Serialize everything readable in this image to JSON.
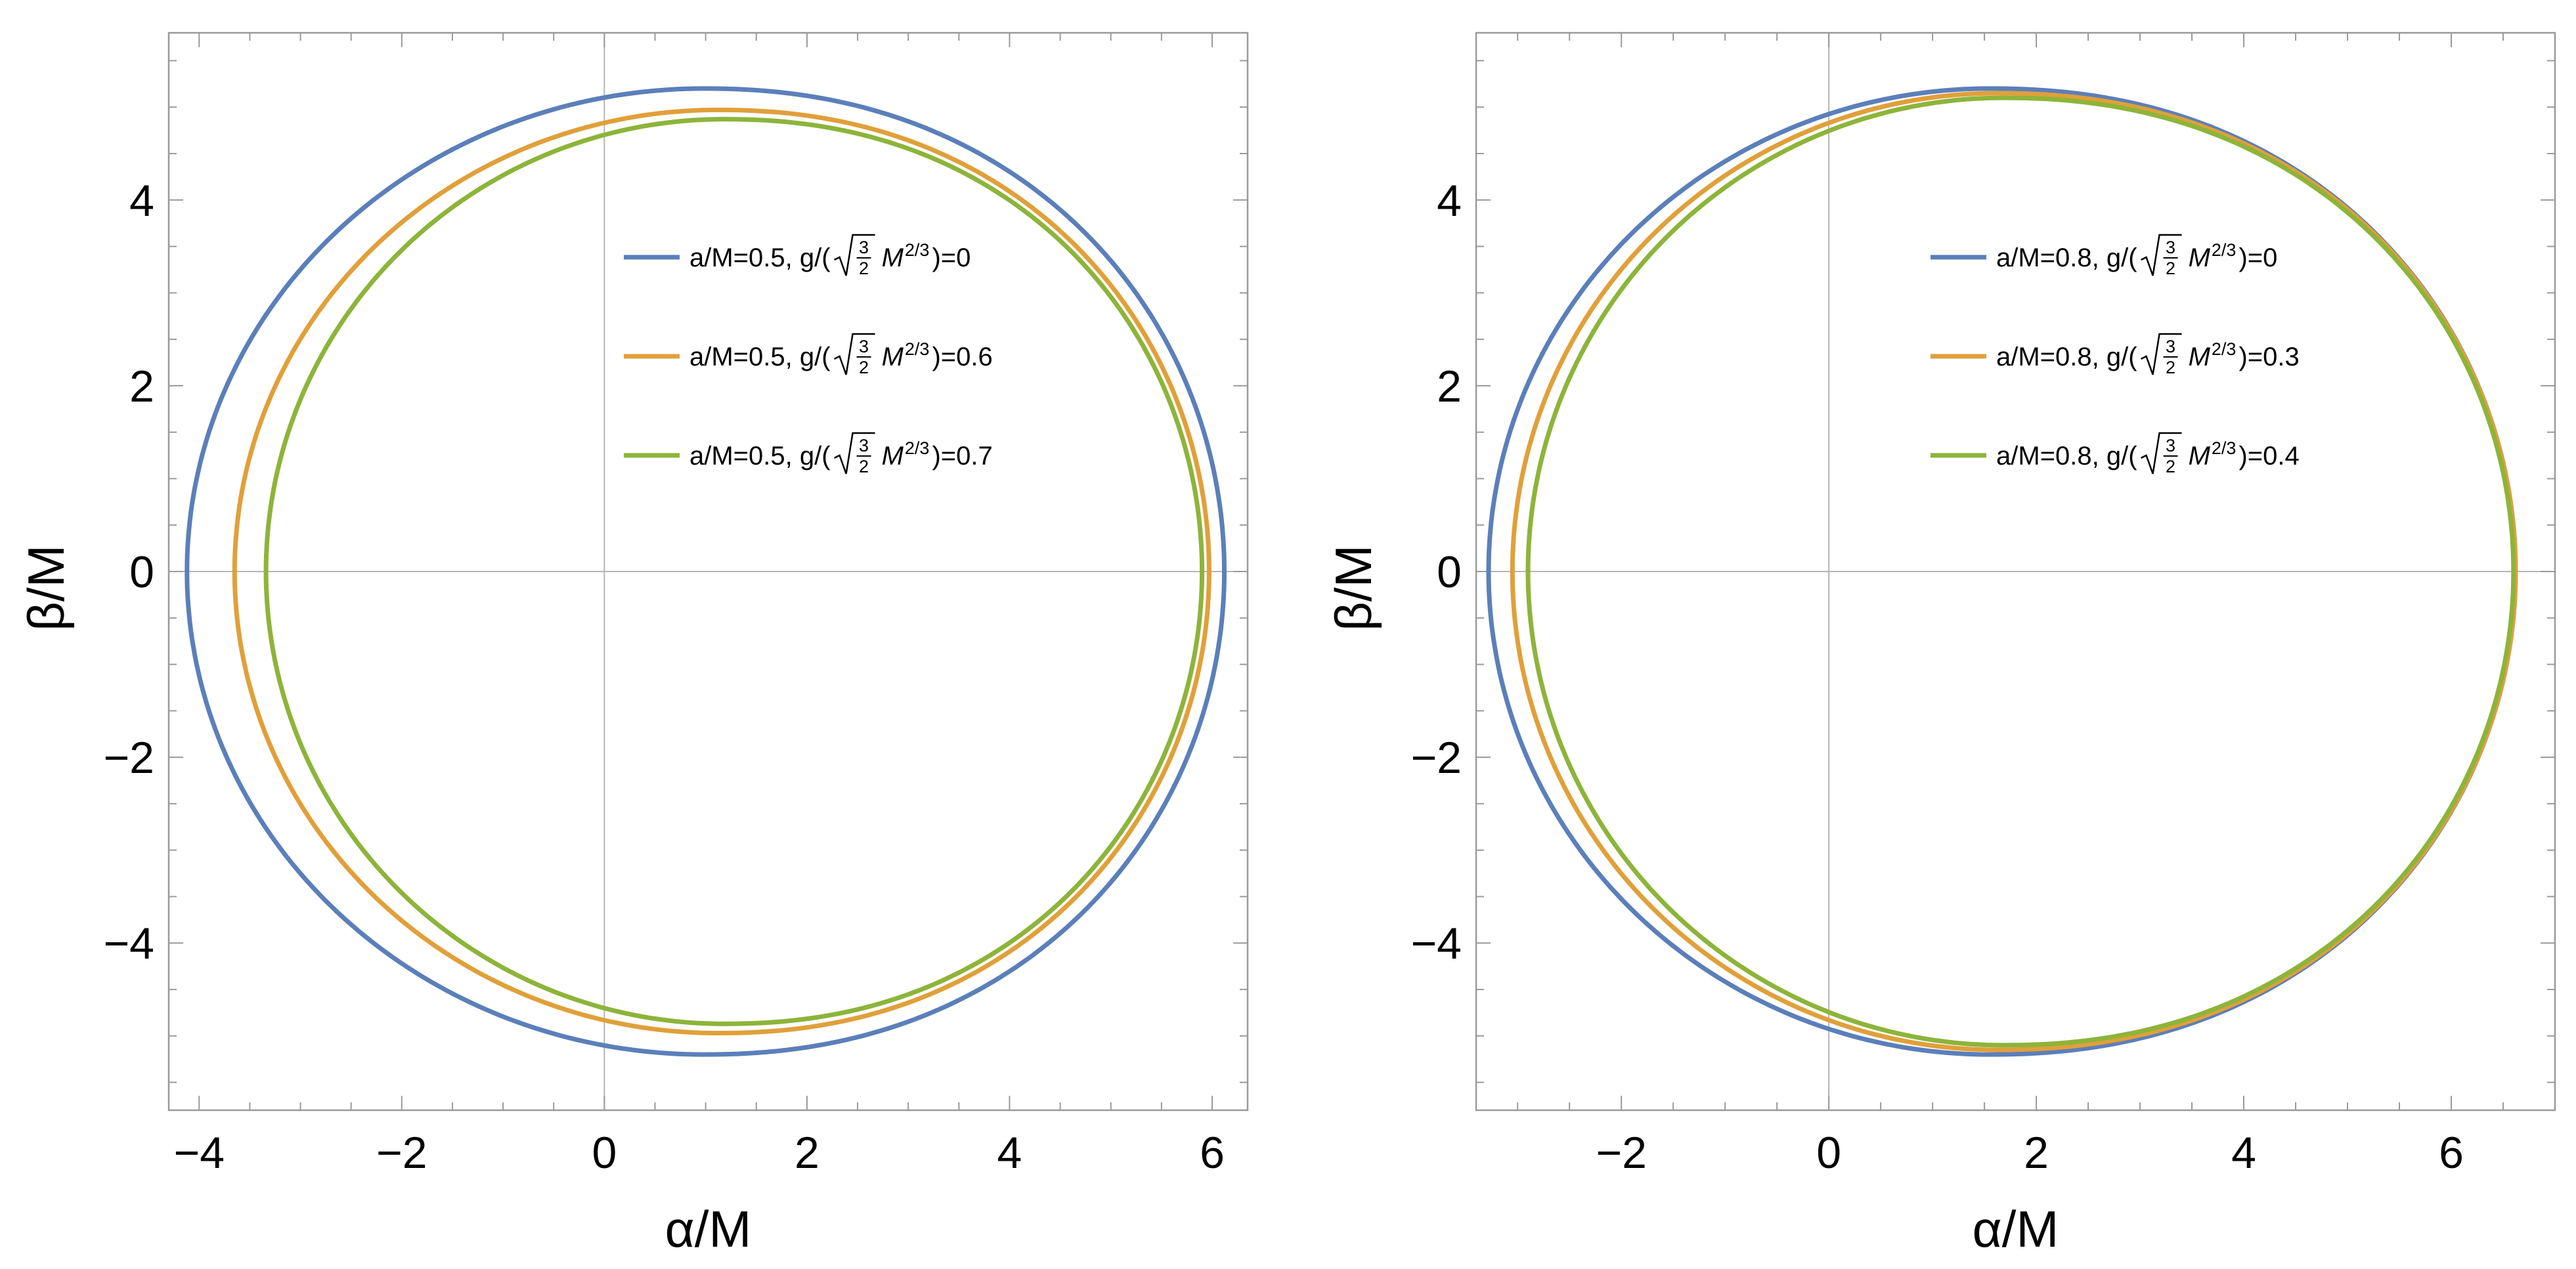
{
  "colors": {
    "blue": "#5B7FBA",
    "orange": "#E0A03A",
    "green": "#8DB43A",
    "frame": "#9a9a9a",
    "zero_line": "#b5b5b5"
  },
  "chart_data": [
    {
      "type": "line",
      "title": "",
      "xlabel": "α/M",
      "ylabel": "β/M",
      "xlim": [
        -4.3,
        6.35
      ],
      "ylim": [
        -5.8,
        5.8
      ],
      "xticks": [
        -4,
        -2,
        0,
        2,
        4,
        6
      ],
      "yticks": [
        -4,
        -2,
        0,
        2,
        4
      ],
      "xtick_labels": [
        "−4",
        "−2",
        "0",
        "2",
        "4",
        "6"
      ],
      "ytick_labels": [
        "−4",
        "−2",
        "0",
        "2",
        "4"
      ],
      "grid": false,
      "legend": "upper-right-inside",
      "series": [
        {
          "label_pre": "a/M=0.5, g/(",
          "label_post": ")=0",
          "color": "blue",
          "x_range": [
            -4.12,
            6.12
          ],
          "y_half": 5.2,
          "x_at_y_max": 0.98
        },
        {
          "label_pre": "a/M=0.5, g/(",
          "label_post": ")=0.6",
          "color": "orange",
          "x_range": [
            -3.65,
            5.97
          ],
          "y_half": 4.97,
          "x_at_y_max": 1.12
        },
        {
          "label_pre": "a/M=0.5, g/(",
          "label_post": ")=0.7",
          "color": "green",
          "x_range": [
            -3.34,
            5.9
          ],
          "y_half": 4.87,
          "x_at_y_max": 1.18
        }
      ]
    },
    {
      "type": "line",
      "title": "",
      "xlabel": "α/M",
      "ylabel": "β/M",
      "xlim": [
        -3.4,
        7.0
      ],
      "ylim": [
        -5.8,
        5.8
      ],
      "xticks": [
        -2,
        0,
        2,
        4,
        6
      ],
      "yticks": [
        -4,
        -2,
        0,
        2,
        4
      ],
      "xtick_labels": [
        "−2",
        "0",
        "2",
        "4",
        "6"
      ],
      "ytick_labels": [
        "−4",
        "−2",
        "0",
        "2",
        "4"
      ],
      "grid": false,
      "legend": "upper-right-inside",
      "series": [
        {
          "label_pre": "a/M=0.8, g/(",
          "label_post": ")=0",
          "color": "blue",
          "x_range": [
            -3.28,
            6.62
          ],
          "y_half": 5.2,
          "x_at_y_max": 1.55
        },
        {
          "label_pre": "a/M=0.8, g/(",
          "label_post": ")=0.3",
          "color": "orange",
          "x_range": [
            -3.05,
            6.62
          ],
          "y_half": 5.15,
          "x_at_y_max": 1.62
        },
        {
          "label_pre": "a/M=0.8, g/(",
          "label_post": ")=0.4",
          "color": "green",
          "x_range": [
            -2.9,
            6.6
          ],
          "y_half": 5.1,
          "x_at_y_max": 1.68
        }
      ]
    }
  ],
  "legend_math": {
    "frac_num": "3",
    "frac_den": "2",
    "mass": "M",
    "exponent": "2/3"
  }
}
